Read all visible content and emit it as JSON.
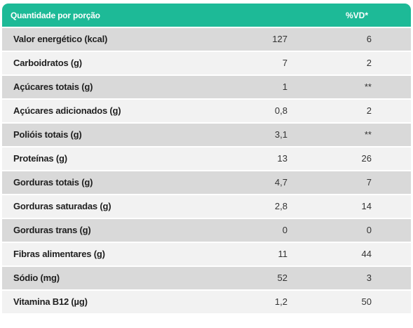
{
  "header": {
    "label": "Quantidade por porção",
    "vd": "%VD*"
  },
  "colors": {
    "header_bg": "#1dba97",
    "row_dark": "#d9d9d9",
    "row_light": "#f2f2f2"
  },
  "rows": [
    {
      "name": "Valor energético (kcal)",
      "qty": "127",
      "vd": "6"
    },
    {
      "name": "Carboidratos (g)",
      "qty": "7",
      "vd": "2"
    },
    {
      "name": "Açúcares totais (g)",
      "qty": "1",
      "vd": "**"
    },
    {
      "name": "Açúcares adicionados (g)",
      "qty": "0,8",
      "vd": "2"
    },
    {
      "name": "Polióis totais (g)",
      "qty": "3,1",
      "vd": "**"
    },
    {
      "name": "Proteínas (g)",
      "qty": "13",
      "vd": "26"
    },
    {
      "name": "Gorduras totais (g)",
      "qty": "4,7",
      "vd": "7"
    },
    {
      "name": "Gorduras saturadas (g)",
      "qty": "2,8",
      "vd": "14"
    },
    {
      "name": "Gorduras trans (g)",
      "qty": "0",
      "vd": "0"
    },
    {
      "name": "Fibras alimentares (g)",
      "qty": "11",
      "vd": "44"
    },
    {
      "name": "Sódio (mg)",
      "qty": "52",
      "vd": "3"
    },
    {
      "name": "Vitamina B12 (µg)",
      "qty": "1,2",
      "vd": "50"
    }
  ]
}
